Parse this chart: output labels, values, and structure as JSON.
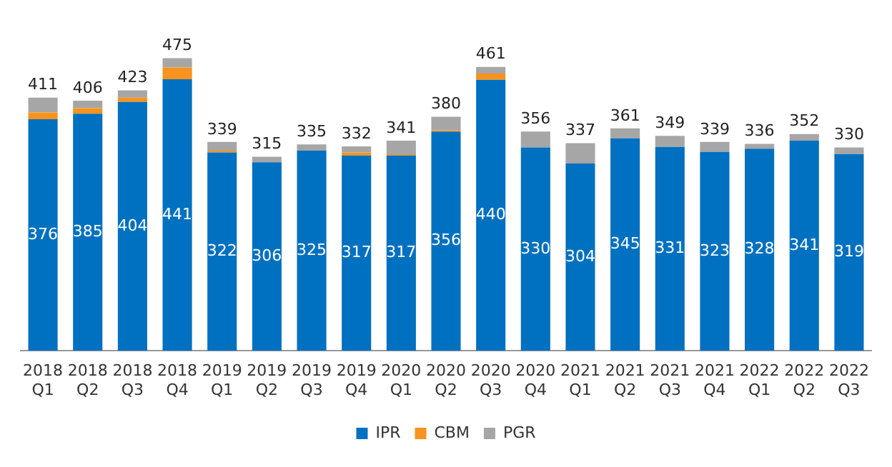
{
  "chart_data": {
    "type": "bar",
    "stacked": true,
    "legend": "bottom",
    "grid": false,
    "categories": [
      "2018 Q1",
      "2018 Q2",
      "2018 Q3",
      "2018 Q4",
      "2019 Q1",
      "2019 Q2",
      "2019 Q3",
      "2019 Q4",
      "2020 Q1",
      "2020 Q2",
      "2020 Q3",
      "2020 Q4",
      "2021 Q1",
      "2021 Q2",
      "2021 Q3",
      "2021 Q4",
      "2022 Q1",
      "2022 Q2",
      "2022 Q3"
    ],
    "series": [
      {
        "name": "IPR",
        "color": "#0070c0",
        "values": [
          376,
          385,
          404,
          441,
          322,
          306,
          325,
          317,
          317,
          356,
          440,
          330,
          304,
          345,
          331,
          323,
          328,
          341,
          319
        ],
        "value_labels": [
          "376",
          "385",
          "404",
          "441",
          "322",
          "306",
          "325",
          "317",
          "317",
          "356",
          "440",
          "330",
          "304",
          "345",
          "331",
          "323",
          "328",
          "341",
          "319"
        ]
      },
      {
        "name": "CBM",
        "color": "#f7931e",
        "values": [
          11,
          9,
          7,
          19,
          3,
          0,
          0,
          5,
          2,
          2,
          10,
          0,
          0,
          0,
          0,
          0,
          0,
          0,
          0
        ]
      },
      {
        "name": "PGR",
        "color": "#a6a6a6",
        "values": [
          24,
          12,
          12,
          15,
          14,
          9,
          10,
          10,
          22,
          22,
          11,
          26,
          33,
          16,
          18,
          16,
          8,
          11,
          11
        ]
      }
    ],
    "totals": [
      "411",
      "406",
      "423",
      "475",
      "339",
      "315",
      "335",
      "332",
      "341",
      "380",
      "461",
      "356",
      "337",
      "361",
      "349",
      "339",
      "336",
      "352",
      "330"
    ]
  }
}
